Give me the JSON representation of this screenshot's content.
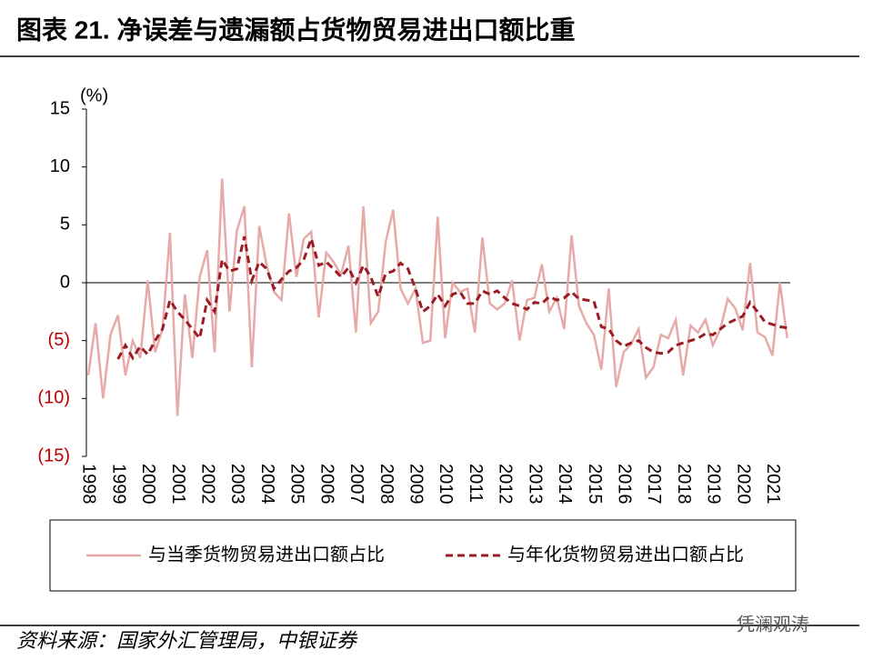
{
  "chart_data": {
    "type": "line",
    "title": "图表 21. 净误差与遗漏额占货物贸易进出口额比重",
    "y_unit": "(%)",
    "source": "资料来源：国家外汇管理局，中银证券",
    "watermark": "凭澜观涛",
    "x": [
      1998,
      1998.25,
      1998.5,
      1998.75,
      1999,
      1999.25,
      1999.5,
      1999.75,
      2000,
      2000.25,
      2000.5,
      2000.75,
      2001,
      2001.25,
      2001.5,
      2001.75,
      2002,
      2002.25,
      2002.5,
      2002.75,
      2003,
      2003.25,
      2003.5,
      2003.75,
      2004,
      2004.25,
      2004.5,
      2004.75,
      2005,
      2005.25,
      2005.5,
      2005.75,
      2006,
      2006.25,
      2006.5,
      2006.75,
      2007,
      2007.25,
      2007.5,
      2007.75,
      2008,
      2008.25,
      2008.5,
      2008.75,
      2009,
      2009.25,
      2009.5,
      2009.75,
      2010,
      2010.25,
      2010.5,
      2010.75,
      2011,
      2011.25,
      2011.5,
      2011.75,
      2012,
      2012.25,
      2012.5,
      2012.75,
      2013,
      2013.25,
      2013.5,
      2013.75,
      2014,
      2014.25,
      2014.5,
      2014.75,
      2015,
      2015.25,
      2015.5,
      2015.75,
      2016,
      2016.25,
      2016.5,
      2016.75,
      2017,
      2017.25,
      2017.5,
      2017.75,
      2018,
      2018.25,
      2018.5,
      2018.75,
      2019,
      2019.25,
      2019.5,
      2019.75,
      2020,
      2020.25,
      2020.5,
      2020.75,
      2021,
      2021.25,
      2021.5
    ],
    "series": [
      {
        "name": "与当季货物贸易进出口额占比",
        "color": "#e6aaa8",
        "dashed": false,
        "values": [
          -8,
          -3.5,
          -10,
          -4.5,
          -2.8,
          -8,
          -5,
          -6.5,
          0.2,
          -6,
          -4,
          4.3,
          -11.5,
          -1,
          -6.5,
          0.5,
          2.8,
          -6,
          9,
          -2.5,
          4.5,
          6.6,
          -7.3,
          4.9,
          1.5,
          -0.8,
          -1.5,
          6,
          0.5,
          3.8,
          4.4,
          -3,
          2.6,
          1.8,
          0.7,
          3.2,
          -4.3,
          6.6,
          -3.5,
          -2.5,
          3.5,
          6.3,
          -0.5,
          -1.8,
          -0.5,
          -5.2,
          -5,
          5.7,
          -4.8,
          0,
          -0.8,
          -0.5,
          -4.3,
          3.9,
          -1.8,
          -2.3,
          -1.8,
          0.2,
          -5,
          -1.5,
          -1.3,
          1.6,
          -2.5,
          -1.3,
          -4,
          4.1,
          -2,
          -3.5,
          -4.5,
          -7.5,
          -0.5,
          -9,
          -6,
          -5.3,
          -4,
          -8.2,
          -7.3,
          -4.5,
          -4.8,
          -3.2,
          -8,
          -3.7,
          -4.3,
          -3.2,
          -5.4,
          -4,
          -1.4,
          -2.2,
          -4.1,
          1.7,
          -4.3,
          -4.7,
          -6.3,
          0,
          -4.8
        ]
      },
      {
        "name": "与年化货物贸易进出口额占比",
        "color": "#9b1c24",
        "dashed": true,
        "values": [
          null,
          null,
          null,
          null,
          -6.6,
          -5.4,
          -6.5,
          -5.5,
          -6.2,
          -5,
          -4,
          -1.5,
          -2.5,
          -3.2,
          -4,
          -4.8,
          -1.5,
          -2.5,
          2,
          1,
          1.2,
          4,
          0.2,
          1.8,
          1.2,
          -0.5,
          0.3,
          1,
          1.3,
          2,
          3.8,
          1.5,
          1.8,
          1.2,
          0.5,
          1.3,
          0,
          1.5,
          0.5,
          -1.2,
          0.8,
          1,
          1.7,
          1.2,
          -0.5,
          -2.5,
          -2,
          -1,
          -2,
          -1,
          -0.8,
          -1.8,
          -1.8,
          -0.7,
          -1,
          -0.7,
          -1.3,
          -1.8,
          -2,
          -2.3,
          -1.7,
          -1.8,
          -1.2,
          -1.5,
          -1.3,
          -0.8,
          -1.4,
          -1.5,
          -1.6,
          -3.8,
          -4,
          -5,
          -5.5,
          -5.2,
          -5,
          -5.6,
          -6,
          -6.1,
          -6,
          -5.4,
          -5.2,
          -5,
          -4.8,
          -4.4,
          -4.5,
          -4,
          -3.5,
          -3.2,
          -2.9,
          -1.7,
          -2.5,
          -3.4,
          -3.6,
          -3.8,
          -3.9
        ]
      }
    ],
    "xlim": [
      1997.94,
      2021.6
    ],
    "xticks": [
      1998,
      1999,
      2000,
      2001,
      2002,
      2003,
      2004,
      2005,
      2006,
      2007,
      2008,
      2009,
      2010,
      2011,
      2012,
      2013,
      2014,
      2015,
      2016,
      2017,
      2018,
      2019,
      2020,
      2021
    ],
    "ylim": [
      -15,
      15
    ],
    "yticks": [
      {
        "value": -15,
        "label": "(15)"
      },
      {
        "value": -10,
        "label": "(10)"
      },
      {
        "value": -5,
        "label": "(5)"
      },
      0,
      5,
      10,
      15
    ],
    "grid": false
  }
}
